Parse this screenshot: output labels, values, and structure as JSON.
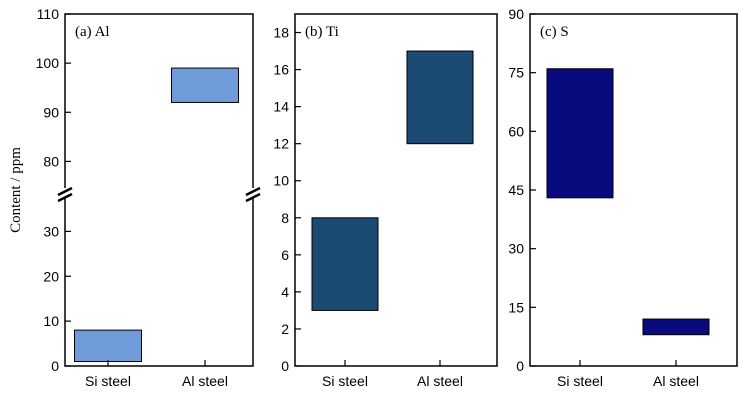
{
  "ylabel": "Content / ppm",
  "chart_data": [
    {
      "type": "bar",
      "title": "(a) Al",
      "categories": [
        "Si steel",
        "Al steel"
      ],
      "ranges": [
        [
          1,
          8
        ],
        [
          92,
          99
        ]
      ],
      "color": "#6f9bdb",
      "ylim": [
        0,
        110
      ],
      "broken_axis": {
        "lower": [
          0,
          37
        ],
        "upper": [
          75,
          110
        ],
        "lower_ticks": [
          0,
          10,
          20,
          30
        ],
        "upper_ticks": [
          80,
          90,
          100,
          110
        ]
      },
      "ylabel": "Content / ppm",
      "grid": false
    },
    {
      "type": "bar",
      "title": "(b) Ti",
      "categories": [
        "Si steel",
        "Al steel"
      ],
      "ranges": [
        [
          3,
          8
        ],
        [
          12,
          17
        ]
      ],
      "color": "#1b4a72",
      "ylim": [
        0,
        19
      ],
      "yticks": [
        0,
        2,
        4,
        6,
        8,
        10,
        12,
        14,
        16,
        18
      ],
      "grid": false
    },
    {
      "type": "bar",
      "title": "(c) S",
      "categories": [
        "Si steel",
        "Al steel"
      ],
      "ranges": [
        [
          43,
          76
        ],
        [
          8,
          12
        ]
      ],
      "color": "#0a0a7f",
      "ylim": [
        0,
        90
      ],
      "yticks": [
        0,
        15,
        30,
        45,
        60,
        75,
        90
      ],
      "grid": false
    }
  ]
}
